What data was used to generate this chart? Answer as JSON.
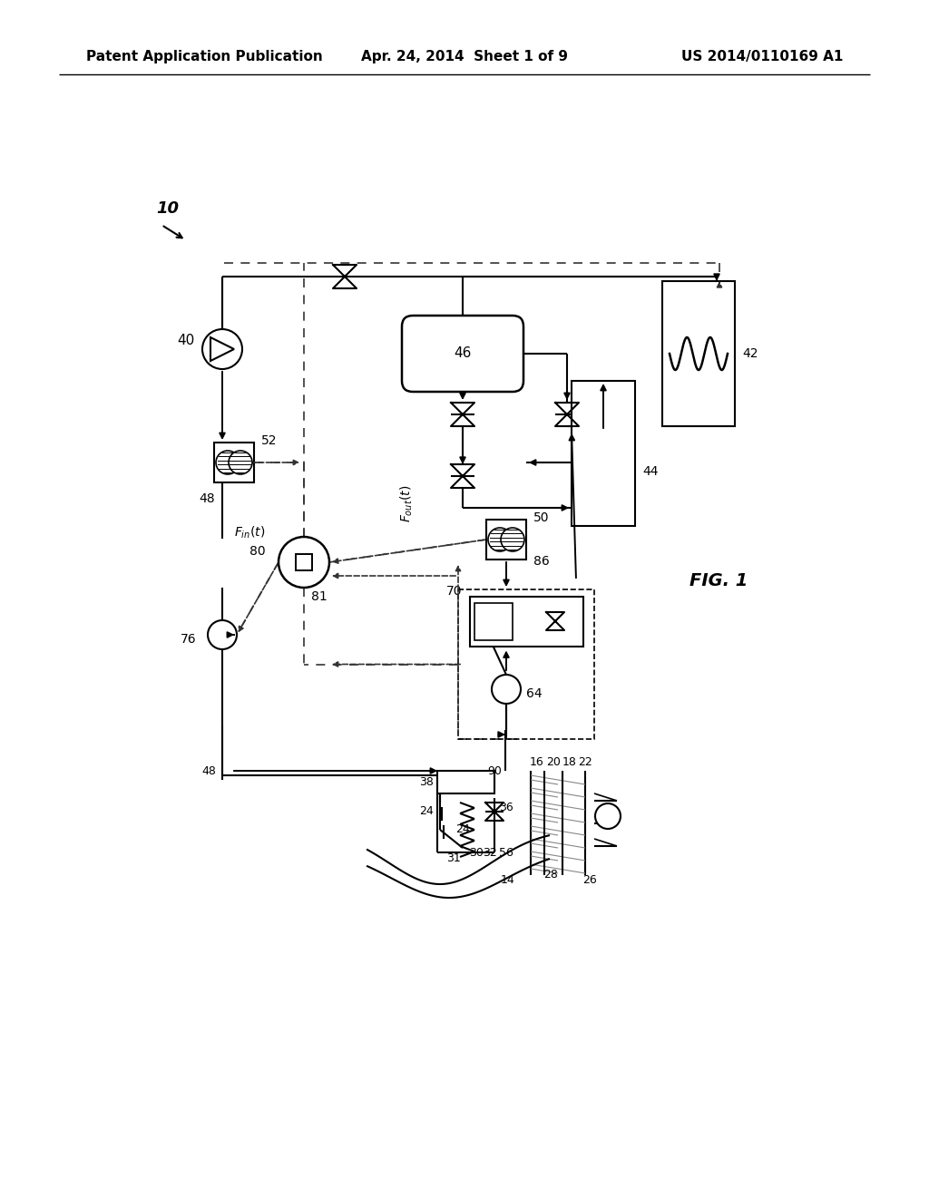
{
  "title_left": "Patent Application Publication",
  "title_center": "Apr. 24, 2014  Sheet 1 of 9",
  "title_right": "US 2014/0110169 A1",
  "fig_label": "FIG. 1",
  "background_color": "#ffffff"
}
